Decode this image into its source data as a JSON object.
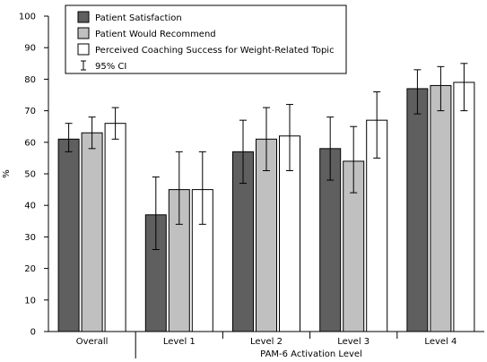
{
  "chart_data": {
    "type": "bar",
    "xlabel": "PAM-6 Activation Level",
    "ylabel": "%",
    "ylim": [
      0,
      100
    ],
    "yticks": [
      0,
      10,
      20,
      30,
      40,
      50,
      60,
      70,
      80,
      90,
      100
    ],
    "categories": [
      "Overall",
      "Level 1",
      "Level 2",
      "Level 3",
      "Level 4"
    ],
    "series": [
      {
        "name": "Patient Satisfaction",
        "color": "#5f5f5f",
        "values": [
          61,
          37,
          57,
          58,
          77
        ],
        "ci_low": [
          57,
          26,
          47,
          48,
          69
        ],
        "ci_high": [
          66,
          49,
          67,
          68,
          83
        ]
      },
      {
        "name": "Patient Would Recommend",
        "color": "#c0c0c0",
        "values": [
          63,
          45,
          61,
          54,
          78
        ],
        "ci_low": [
          58,
          34,
          51,
          44,
          70
        ],
        "ci_high": [
          68,
          57,
          71,
          65,
          84
        ]
      },
      {
        "name": "Perceived Coaching Success for Weight-Related Topic",
        "color": "#ffffff",
        "values": [
          66,
          45,
          62,
          67,
          79
        ],
        "ci_low": [
          61,
          34,
          51,
          55,
          70
        ],
        "ci_high": [
          71,
          57,
          72,
          76,
          85
        ]
      }
    ],
    "error_bar_label": "95% CI",
    "legend_position": "top-left",
    "grid": false
  }
}
